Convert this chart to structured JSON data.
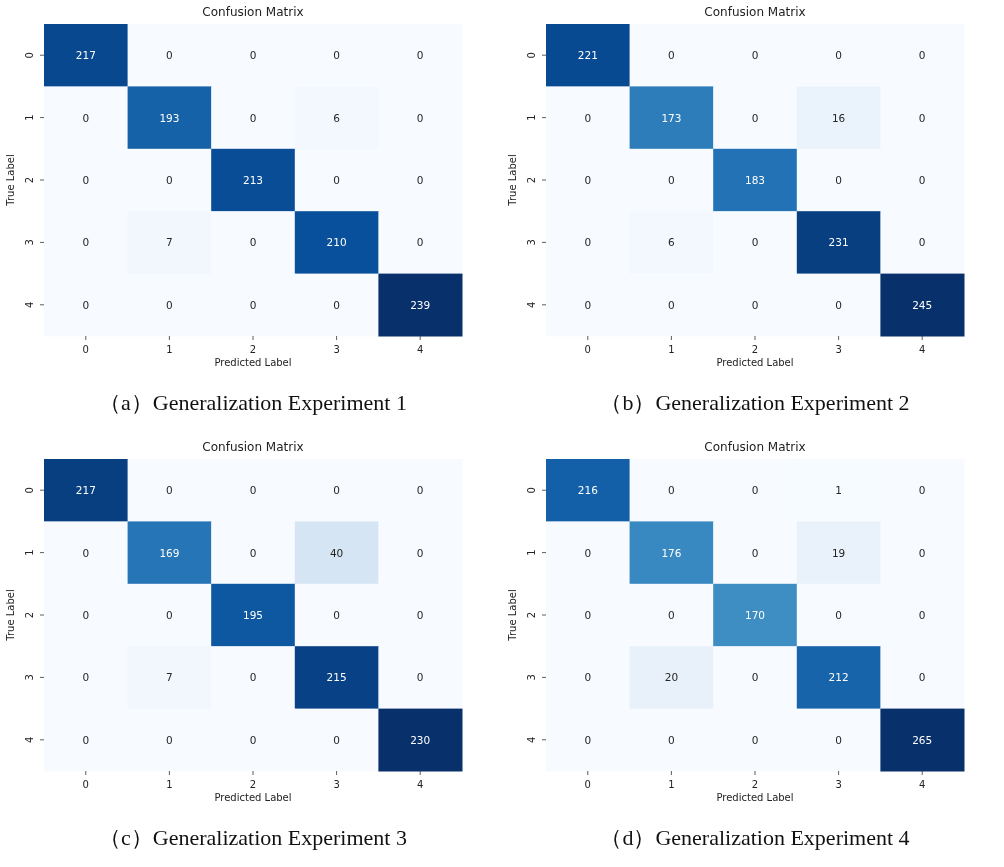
{
  "chart_data": [
    {
      "type": "heatmap",
      "title": "Confusion Matrix",
      "xlabel": "Predicted Label",
      "ylabel": "True Label",
      "categories": [
        "0",
        "1",
        "2",
        "3",
        "4"
      ],
      "y_categories": [
        "0",
        "1",
        "2",
        "3",
        "4"
      ],
      "data_labels": true,
      "annotations": [
        "（a）Generalization Experiment 1"
      ],
      "cells": [
        [
          217,
          0,
          0,
          0,
          0
        ],
        [
          0,
          193,
          0,
          6,
          0
        ],
        [
          0,
          0,
          213,
          0,
          0
        ],
        [
          0,
          7,
          0,
          210,
          0
        ],
        [
          0,
          0,
          0,
          0,
          239
        ]
      ]
    },
    {
      "type": "heatmap",
      "title": "Confusion Matrix",
      "xlabel": "Predicted Label",
      "ylabel": "True Label",
      "categories": [
        "0",
        "1",
        "2",
        "3",
        "4"
      ],
      "y_categories": [
        "0",
        "1",
        "2",
        "3",
        "4"
      ],
      "data_labels": true,
      "annotations": [
        "（b）Generalization Experiment 2"
      ],
      "cells": [
        [
          221,
          0,
          0,
          0,
          0
        ],
        [
          0,
          173,
          0,
          16,
          0
        ],
        [
          0,
          0,
          183,
          0,
          0
        ],
        [
          0,
          6,
          0,
          231,
          0
        ],
        [
          0,
          0,
          0,
          0,
          245
        ]
      ]
    },
    {
      "type": "heatmap",
      "title": "Confusion Matrix",
      "xlabel": "Predicted Label",
      "ylabel": "True Label",
      "categories": [
        "0",
        "1",
        "2",
        "3",
        "4"
      ],
      "y_categories": [
        "0",
        "1",
        "2",
        "3",
        "4"
      ],
      "data_labels": true,
      "annotations": [
        "（c）Generalization Experiment 3"
      ],
      "cells": [
        [
          217,
          0,
          0,
          0,
          0
        ],
        [
          0,
          169,
          0,
          40,
          0
        ],
        [
          0,
          0,
          195,
          0,
          0
        ],
        [
          0,
          7,
          0,
          215,
          0
        ],
        [
          0,
          0,
          0,
          0,
          230
        ]
      ]
    },
    {
      "type": "heatmap",
      "title": "Confusion Matrix",
      "xlabel": "Predicted Label",
      "ylabel": "True Label",
      "categories": [
        "0",
        "1",
        "2",
        "3",
        "4"
      ],
      "y_categories": [
        "0",
        "1",
        "2",
        "3",
        "4"
      ],
      "data_labels": true,
      "annotations": [
        "（d）Generalization Experiment 4"
      ],
      "cells": [
        [
          216,
          0,
          0,
          1,
          0
        ],
        [
          0,
          176,
          0,
          19,
          0
        ],
        [
          0,
          0,
          170,
          0,
          0
        ],
        [
          0,
          20,
          0,
          212,
          0
        ],
        [
          0,
          0,
          0,
          0,
          265
        ]
      ]
    }
  ]
}
